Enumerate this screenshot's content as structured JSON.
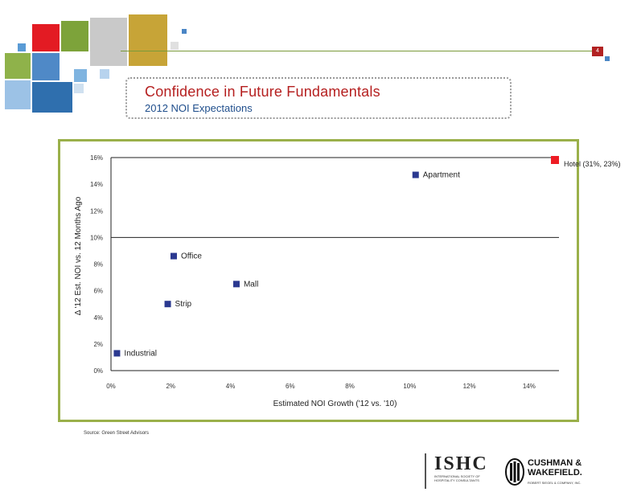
{
  "page": {
    "number": "4",
    "title": "Confidence in Future Fundamentals",
    "subtitle": "2012 NOI Expectations",
    "source": "Source: Green Street Advisors"
  },
  "logos": {
    "ishc_name": "ISHC",
    "ishc_tagline": "INTERNATIONAL SOCIETY OF HOSPITALITY CONSULTANTS",
    "cw_name_line1": "CUSHMAN &",
    "cw_name_line2": "WAKEFIELD.",
    "cw_tagline": "ROBERT SIEGEL & COMPANY, INC."
  },
  "colors": {
    "series": "#2b3990",
    "highlight": "#ee1c24",
    "frame": "#9ab04a",
    "title": "#b51f1f",
    "subtitle": "#1f4e8c"
  },
  "chart_data": {
    "type": "scatter",
    "title": "",
    "xlabel": "Estimated NOI Growth ('12 vs. '10)",
    "ylabel": "Δ '12 Est. NOI vs. 12 Months Ago",
    "xlim": [
      0,
      15
    ],
    "ylim": [
      0,
      16
    ],
    "x_ticks": [
      "0%",
      "2%",
      "4%",
      "6%",
      "8%",
      "10%",
      "12%",
      "14%"
    ],
    "x_tick_values": [
      0,
      2,
      4,
      6,
      8,
      10,
      12,
      14
    ],
    "y_ticks": [
      "0%",
      "2%",
      "4%",
      "6%",
      "8%",
      "10%",
      "12%",
      "14%",
      "16%"
    ],
    "y_tick_values": [
      0,
      2,
      4,
      6,
      8,
      10,
      12,
      14,
      16
    ],
    "reference_line_y": 10,
    "grid": false,
    "points": [
      {
        "label": "Industrial",
        "x": 0.2,
        "y": 1.3
      },
      {
        "label": "Strip",
        "x": 1.9,
        "y": 5.0
      },
      {
        "label": "Office",
        "x": 2.1,
        "y": 8.6
      },
      {
        "label": "Mall",
        "x": 4.2,
        "y": 6.5
      },
      {
        "label": "Apartment",
        "x": 10.2,
        "y": 14.7
      }
    ],
    "annotation": {
      "label": "Hotel (31%, 23%)",
      "x": 31,
      "y": 23
    }
  }
}
